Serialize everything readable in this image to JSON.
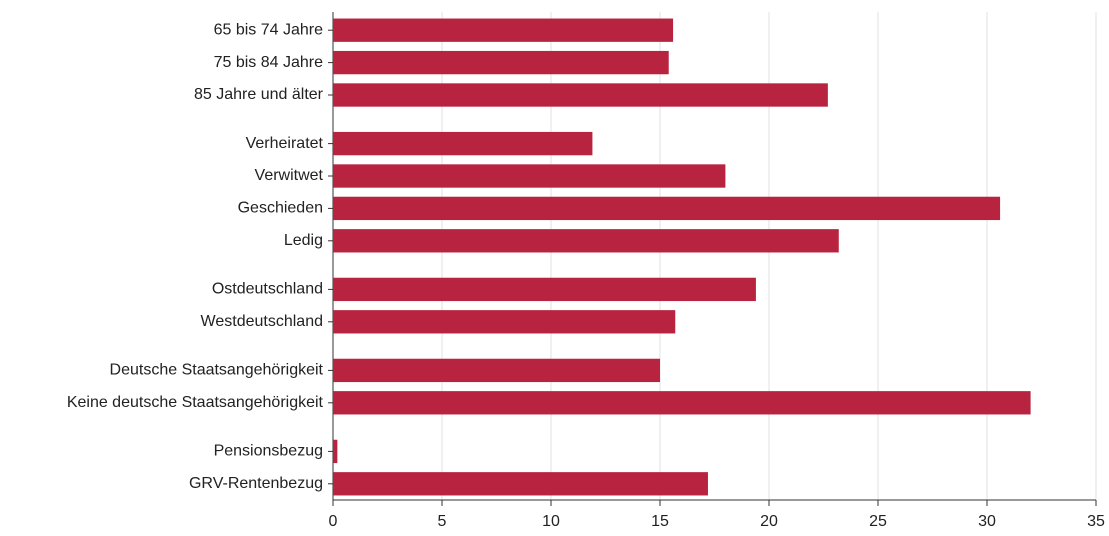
{
  "chart_data": {
    "type": "barh",
    "categories": [
      "65 bis 74 Jahre",
      "75 bis 84 Jahre",
      "85 Jahre und älter",
      null,
      "Verheiratet",
      "Verwitwet",
      "Geschieden",
      "Ledig",
      null,
      "Ostdeutschland",
      "Westdeutschland",
      null,
      "Deutsche Staatsangehörigkeit",
      "Keine deutsche Staatsangehörigkeit",
      null,
      "Pensionsbezug",
      "GRV-Rentenbezug"
    ],
    "values": [
      15.6,
      15.4,
      22.7,
      null,
      11.9,
      18.0,
      30.6,
      23.2,
      null,
      19.4,
      15.7,
      null,
      15.0,
      32.0,
      null,
      0.2,
      17.2
    ],
    "color": "#b82340",
    "xlim": [
      0,
      35
    ],
    "xticks": [
      0,
      5,
      10,
      15,
      20,
      25,
      30,
      35
    ],
    "grid": true
  }
}
